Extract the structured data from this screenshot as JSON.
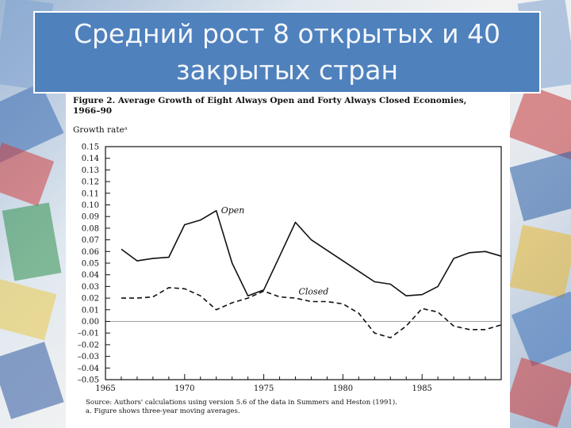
{
  "slide": {
    "title_line1": "Средний рост 8 открытых и 40",
    "title_line2": "закрытых стран"
  },
  "figure": {
    "caption_line1": "Figure 2.  Average Growth of Eight Always Open and Forty Always Closed Economies,",
    "caption_line2": "1966–90",
    "ylabel": "Growth rateᵃ",
    "source_line1": "Source: Authors' calculations using version 5.6 of the data in Summers and Heston (1991).",
    "source_line2": "a.  Figure shows three-year moving averages."
  },
  "chart_data": {
    "type": "line",
    "title": "Average Growth of Eight Always Open and Forty Always Closed Economies, 1966–90",
    "ylabel": "Growth rate",
    "xlim": [
      1965,
      1990
    ],
    "ylim": [
      -0.05,
      0.15
    ],
    "x_ticks": [
      1965,
      1970,
      1975,
      1980,
      1985
    ],
    "y_ticks": [
      "0.15",
      "0.14",
      "0.13",
      "0.12",
      "0.11",
      "0.10",
      "0.09",
      "0.08",
      "0.07",
      "0.06",
      "0.05",
      "0.04",
      "0.03",
      "0.02",
      "0.01",
      "0.00",
      "–0.01",
      "–0.02",
      "–0.03",
      "–0.04",
      "–0.05"
    ],
    "zero_line": true,
    "series": [
      {
        "name": "Open",
        "style": "solid",
        "x": [
          1966,
          1967,
          1968,
          1969,
          1970,
          1971,
          1972,
          1973,
          1974,
          1975,
          1976,
          1977,
          1978,
          1979,
          1980,
          1981,
          1982,
          1983,
          1984,
          1985,
          1986,
          1987,
          1988,
          1989,
          1990
        ],
        "values": [
          0.062,
          0.052,
          0.054,
          0.055,
          0.083,
          0.087,
          0.095,
          0.05,
          0.022,
          0.027,
          0.056,
          0.085,
          0.07,
          0.061,
          0.052,
          0.043,
          0.034,
          0.032,
          0.022,
          0.023,
          0.03,
          0.054,
          0.059,
          0.06,
          0.056
        ]
      },
      {
        "name": "Closed",
        "style": "dashed",
        "x": [
          1966,
          1967,
          1968,
          1969,
          1970,
          1971,
          1972,
          1973,
          1974,
          1975,
          1976,
          1977,
          1978,
          1979,
          1980,
          1981,
          1982,
          1983,
          1984,
          1985,
          1986,
          1987,
          1988,
          1989,
          1990
        ],
        "values": [
          0.02,
          0.02,
          0.021,
          0.029,
          0.028,
          0.022,
          0.01,
          0.016,
          0.02,
          0.026,
          0.021,
          0.02,
          0.017,
          0.017,
          0.015,
          0.007,
          -0.01,
          -0.014,
          -0.004,
          0.011,
          0.008,
          -0.004,
          -0.007,
          -0.007,
          -0.003
        ]
      }
    ],
    "labels": [
      {
        "text": "Open",
        "x": 1972.3,
        "y": 0.093
      },
      {
        "text": "Closed",
        "x": 1977.2,
        "y": 0.023
      }
    ]
  }
}
